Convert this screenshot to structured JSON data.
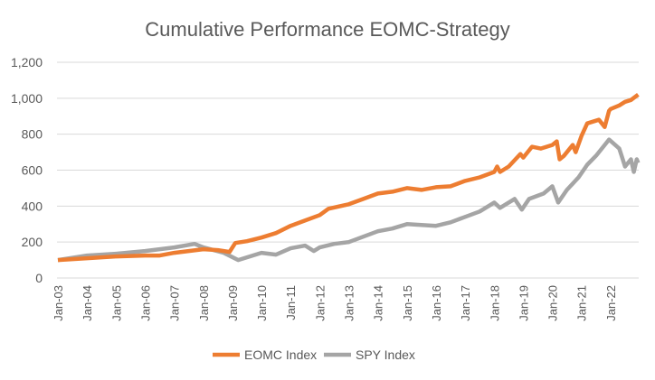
{
  "chart_data": {
    "type": "line",
    "title": "Cumulative Performance EOMC-Strategy",
    "xlabel": "",
    "ylabel": "",
    "ylim": [
      0,
      1200
    ],
    "xlim": [
      2003,
      2023
    ],
    "yticks": [
      0,
      200,
      400,
      600,
      800,
      1000,
      1200
    ],
    "ytick_labels": [
      "0",
      "200",
      "400",
      "600",
      "800",
      "1,000",
      "1,200"
    ],
    "xtick_labels": [
      "Jan-03",
      "Jan-04",
      "Jan-05",
      "Jan-06",
      "Jan-07",
      "Jan-08",
      "Jan-09",
      "Jan-10",
      "Jan-11",
      "Jan-12",
      "Jan-13",
      "Jan-14",
      "Jan-15",
      "Jan-16",
      "Jan-17",
      "Jan-18",
      "Jan-19",
      "Jan-20",
      "Jan-21",
      "Jan-22"
    ],
    "grid": true,
    "legend_position": "bottom",
    "series": [
      {
        "name": "EOMC Index",
        "color": "#ED7D31",
        "x": [
          2003,
          2004,
          2005,
          2006,
          2006.5,
          2007,
          2007.5,
          2008,
          2008.5,
          2008.9,
          2009.1,
          2009.5,
          2010,
          2010.5,
          2011,
          2011.5,
          2012,
          2012.3,
          2013,
          2013.5,
          2014,
          2014.5,
          2015,
          2015.5,
          2016,
          2016.5,
          2017,
          2017.5,
          2018,
          2018.1,
          2018.2,
          2018.5,
          2018.9,
          2019,
          2019.3,
          2019.6,
          2020,
          2020.15,
          2020.25,
          2020.4,
          2020.7,
          2020.8,
          2021,
          2021.2,
          2021.6,
          2021.8,
          2021.95,
          2022,
          2022.3,
          2022.5,
          2022.7,
          2022.95
        ],
        "y": [
          100,
          110,
          120,
          125,
          125,
          140,
          150,
          160,
          155,
          145,
          195,
          205,
          225,
          250,
          290,
          320,
          350,
          385,
          410,
          440,
          470,
          480,
          500,
          490,
          505,
          510,
          540,
          560,
          590,
          620,
          590,
          620,
          690,
          670,
          730,
          720,
          740,
          760,
          660,
          680,
          740,
          700,
          790,
          860,
          880,
          840,
          930,
          940,
          960,
          980,
          990,
          1020
        ]
      },
      {
        "name": "SPY Index",
        "color": "#A5A5A5",
        "x": [
          2003,
          2004,
          2005,
          2006,
          2007,
          2007.7,
          2008,
          2008.7,
          2009.2,
          2010,
          2010.5,
          2011,
          2011.5,
          2011.8,
          2012,
          2012.5,
          2013,
          2013.5,
          2014,
          2014.5,
          2015,
          2015.5,
          2016,
          2016.5,
          2017,
          2017.5,
          2018,
          2018.2,
          2018.7,
          2018.95,
          2019.2,
          2019.7,
          2020,
          2020.2,
          2020.5,
          2020.9,
          2021.2,
          2021.5,
          2021.95,
          2022.3,
          2022.5,
          2022.7,
          2022.8,
          2022.9,
          2022.95
        ],
        "y": [
          100,
          125,
          135,
          150,
          170,
          190,
          170,
          140,
          100,
          140,
          130,
          165,
          180,
          150,
          170,
          190,
          200,
          230,
          260,
          275,
          300,
          295,
          290,
          310,
          340,
          370,
          420,
          390,
          440,
          380,
          440,
          470,
          510,
          420,
          490,
          560,
          630,
          680,
          770,
          720,
          620,
          660,
          590,
          660,
          640
        ]
      }
    ]
  }
}
